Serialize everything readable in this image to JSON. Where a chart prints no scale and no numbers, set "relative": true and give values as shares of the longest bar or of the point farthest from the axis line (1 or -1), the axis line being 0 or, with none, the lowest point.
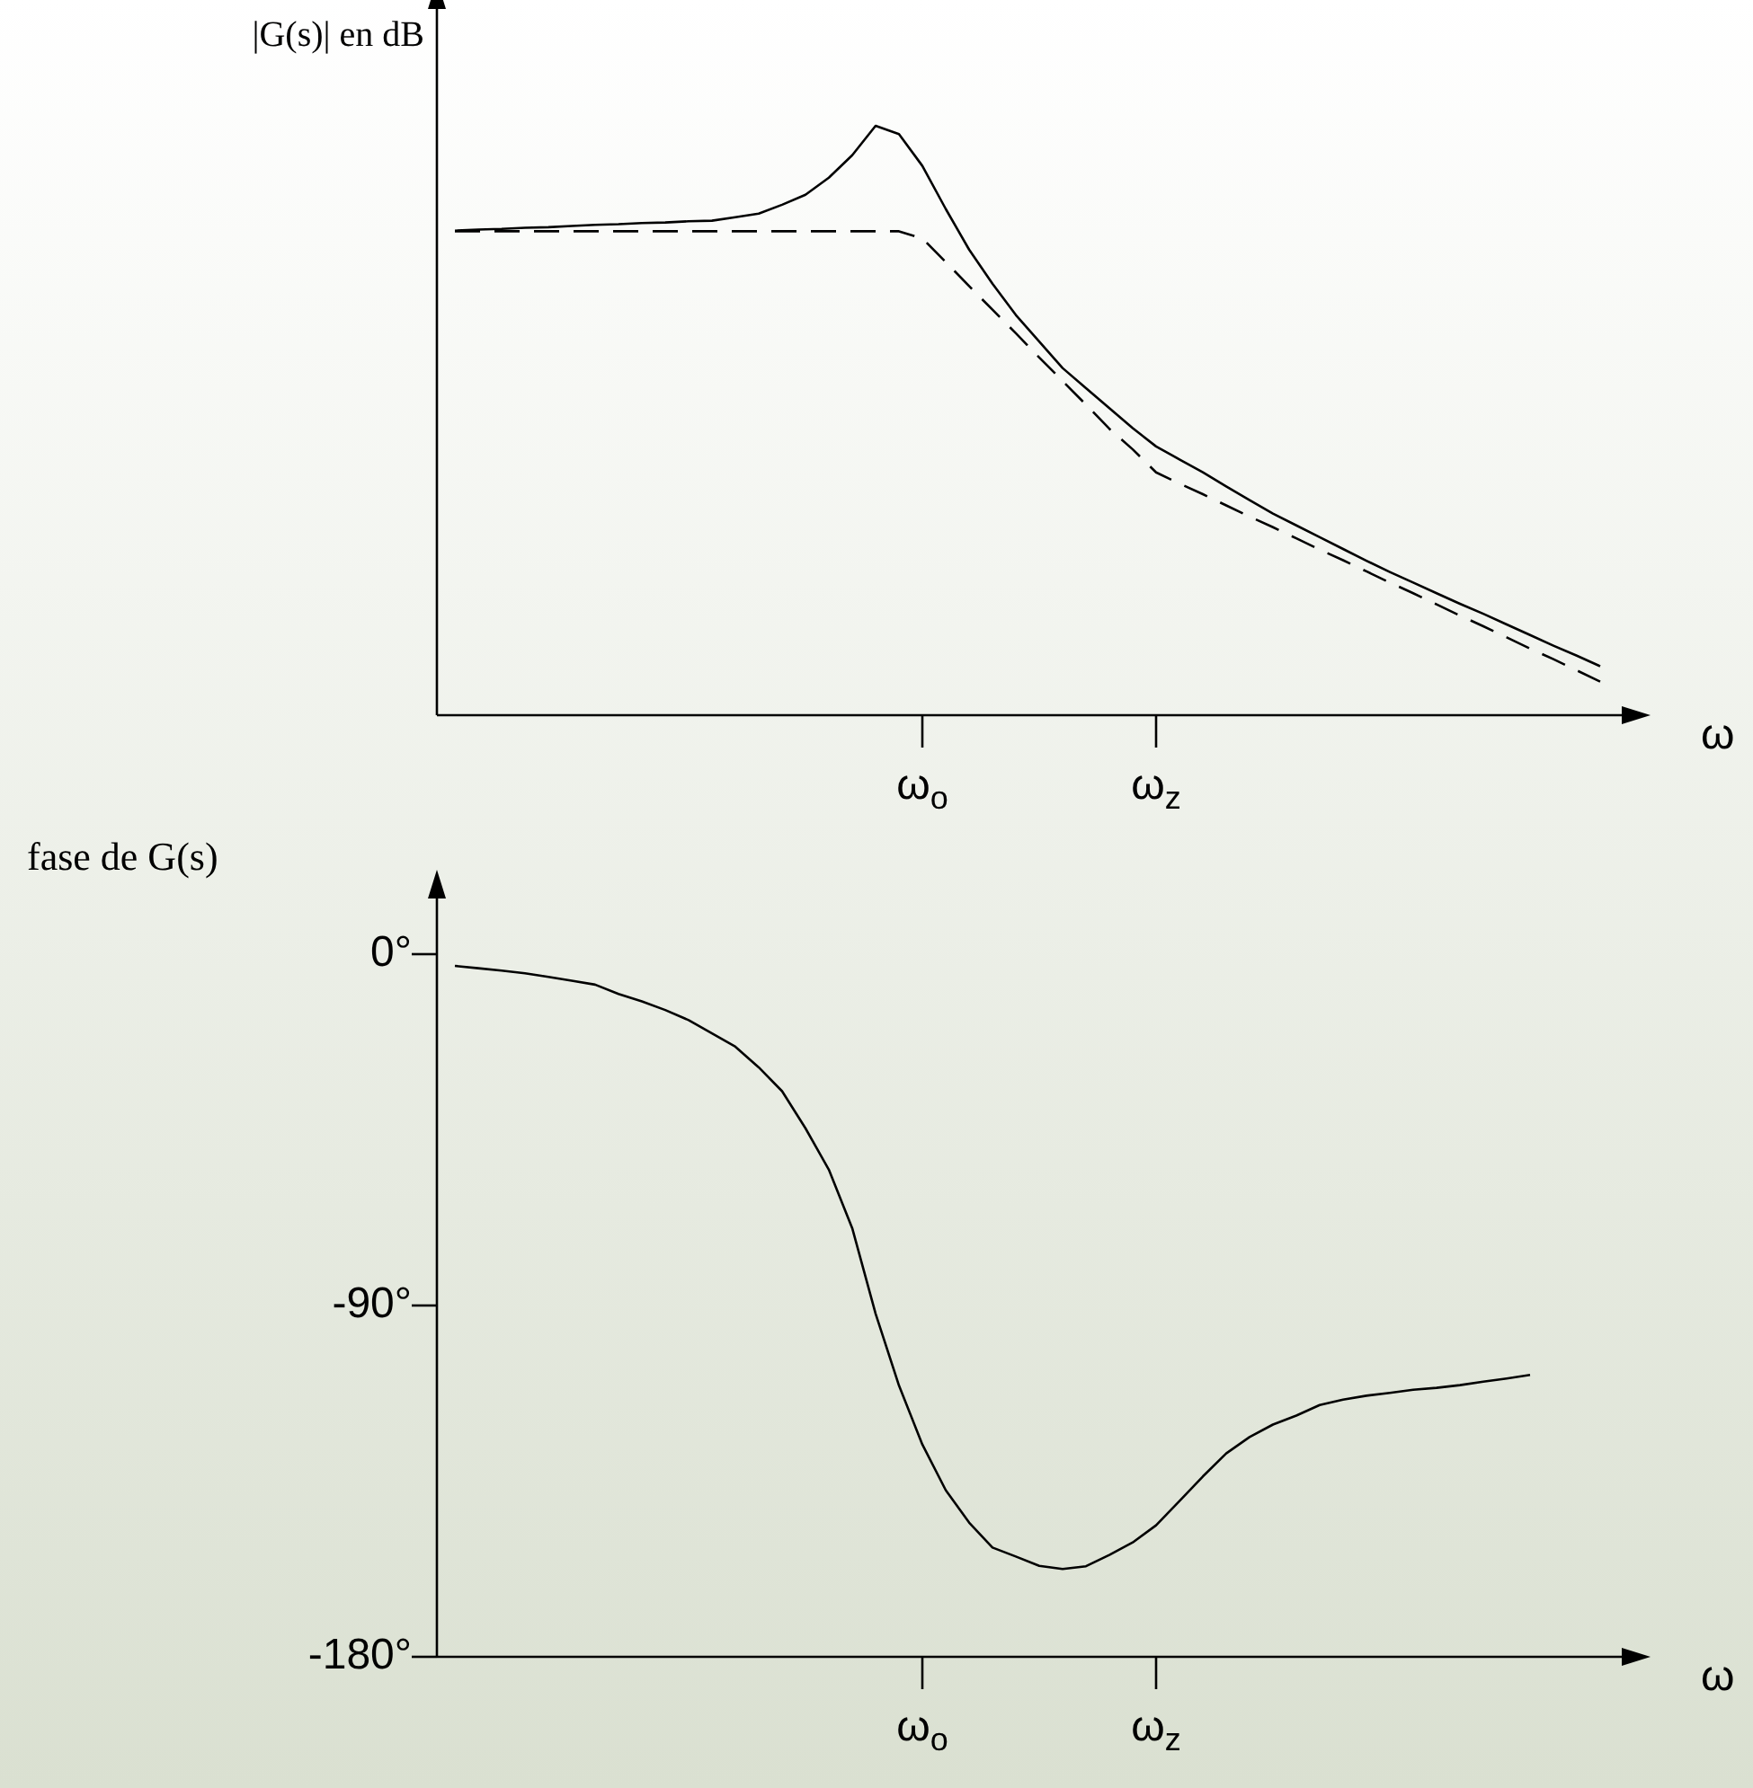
{
  "chart_data": [
    {
      "type": "line",
      "ylabel": "|G(s)| en dB",
      "xlabel": "ω",
      "relative": true,
      "categories": [
        null,
        null,
        null,
        null,
        null,
        null,
        null,
        null,
        null,
        null,
        null,
        null,
        null,
        null,
        null,
        null,
        null,
        null,
        null,
        null,
        "ω$_{o}$",
        null,
        null,
        null,
        null,
        null,
        null,
        null,
        null,
        null,
        "ω$_{z}$",
        null,
        null,
        null,
        null,
        null,
        null,
        null,
        null,
        null,
        null,
        null,
        null,
        null,
        null,
        null,
        null,
        null,
        null,
        null
      ],
      "series": [
        {
          "color": "#000000",
          "line_style": "solid",
          "values": [
            0.822,
            0.824,
            0.825,
            0.827,
            0.828,
            0.83,
            0.832,
            0.833,
            0.835,
            0.836,
            0.838,
            0.839,
            0.845,
            0.851,
            0.866,
            0.883,
            0.912,
            0.95,
            1.0,
            0.986,
            0.932,
            0.859,
            0.79,
            0.732,
            0.679,
            0.634,
            0.589,
            0.555,
            0.521,
            0.487,
            0.456,
            0.434,
            0.412,
            0.388,
            0.365,
            0.342,
            0.322,
            0.302,
            0.282,
            0.262,
            0.243,
            0.225,
            0.207,
            0.189,
            0.172,
            0.154,
            0.136,
            0.118,
            0.101,
            0.083
          ]
        },
        {
          "color": "#000000",
          "line_style": "dashed",
          "values": [
            0.821,
            0.821,
            0.821,
            0.821,
            0.821,
            0.821,
            0.821,
            0.821,
            0.821,
            0.821,
            0.821,
            0.821,
            0.821,
            0.821,
            0.821,
            0.821,
            0.821,
            0.821,
            0.821,
            0.821,
            0.809,
            0.769,
            0.728,
            0.688,
            0.648,
            0.607,
            0.567,
            0.527,
            0.486,
            0.451,
            0.412,
            0.393,
            0.375,
            0.356,
            0.337,
            0.319,
            0.3,
            0.281,
            0.263,
            0.244,
            0.225,
            0.207,
            0.188,
            0.169,
            0.151,
            0.132,
            0.113,
            0.095,
            0.076,
            0.057
          ]
        }
      ]
    },
    {
      "type": "line",
      "ylabel": "fase de G(s)",
      "xlabel": "ω",
      "ylim": [
        -180,
        15
      ],
      "yticks": [
        {
          "value": 0,
          "label": "0°"
        },
        {
          "value": -90,
          "label": "-90°"
        },
        {
          "value": -180,
          "label": "-180°"
        }
      ],
      "categories": [
        null,
        null,
        null,
        null,
        null,
        null,
        null,
        null,
        null,
        null,
        null,
        null,
        null,
        null,
        null,
        null,
        null,
        null,
        null,
        null,
        "ω$_{o}$",
        null,
        null,
        null,
        null,
        null,
        null,
        null,
        null,
        null,
        "ω$_{z}$",
        null,
        null,
        null,
        null,
        null,
        null,
        null,
        null,
        null,
        null,
        null,
        null,
        null,
        null,
        null,
        null,
        null,
        null,
        null
      ],
      "series": [
        {
          "color": "#000000",
          "line_style": "solid",
          "values": [
            -3.0,
            -3.6,
            -4.2,
            -4.9,
            -5.8,
            -6.8,
            -7.8,
            -10.2,
            -12.1,
            -14.3,
            -16.9,
            -20.3,
            -23.7,
            -29.0,
            -35.1,
            -44.6,
            -55.2,
            -70.2,
            -92.1,
            -110.5,
            -125.6,
            -137.3,
            -145.6,
            -152.0,
            -154.3,
            -156.7,
            -157.5,
            -156.8,
            -153.9,
            -150.7,
            -146.3,
            -140.1,
            -133.8,
            -127.9,
            -123.7,
            -120.5,
            -118.2,
            -115.5,
            -114.1,
            -113.1,
            -112.4,
            -111.6,
            -111.1,
            -110.4,
            -109.5,
            -108.7,
            -107.8,
            null,
            null,
            null
          ]
        }
      ]
    }
  ]
}
